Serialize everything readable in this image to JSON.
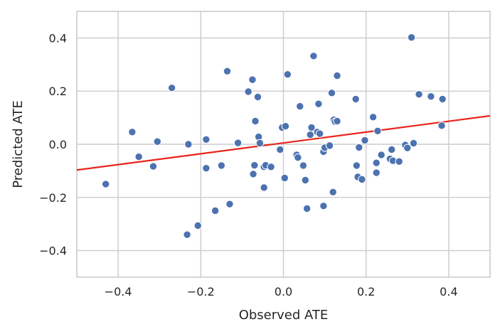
{
  "chart_data": {
    "type": "scatter",
    "title": "",
    "xlabel": "Observed ATE",
    "ylabel": "Predicted ATE",
    "xlim": [
      -0.5,
      0.5
    ],
    "ylim": [
      -0.5,
      0.5
    ],
    "xticks": [
      -0.4,
      -0.2,
      0.0,
      0.2,
      0.4
    ],
    "yticks": [
      -0.4,
      -0.2,
      0.0,
      0.2,
      0.4
    ],
    "xtick_labels": [
      "−0.4",
      "−0.2",
      "0.0",
      "0.2",
      "0.4"
    ],
    "ytick_labels": [
      "−0.4",
      "−0.2",
      "0.0",
      "0.2",
      "0.4"
    ],
    "grid": true,
    "point_color": "#4c72b0",
    "line_color": "#e8231c",
    "fit_line": {
      "x": [
        -0.5,
        0.5
      ],
      "y": [
        -0.097,
        0.107
      ]
    },
    "points": [
      {
        "x": -0.43,
        "y": -0.15
      },
      {
        "x": -0.366,
        "y": 0.046
      },
      {
        "x": -0.35,
        "y": -0.047
      },
      {
        "x": -0.315,
        "y": -0.083
      },
      {
        "x": -0.305,
        "y": 0.01
      },
      {
        "x": -0.27,
        "y": 0.212
      },
      {
        "x": -0.233,
        "y": -0.34
      },
      {
        "x": -0.23,
        "y": 0.0
      },
      {
        "x": -0.207,
        "y": -0.306
      },
      {
        "x": -0.187,
        "y": 0.018
      },
      {
        "x": -0.187,
        "y": -0.09
      },
      {
        "x": -0.165,
        "y": -0.25
      },
      {
        "x": -0.15,
        "y": -0.08
      },
      {
        "x": -0.136,
        "y": 0.275
      },
      {
        "x": -0.13,
        "y": -0.225
      },
      {
        "x": -0.11,
        "y": 0.005
      },
      {
        "x": -0.085,
        "y": 0.198
      },
      {
        "x": -0.075,
        "y": 0.243
      },
      {
        "x": -0.073,
        "y": -0.112
      },
      {
        "x": -0.07,
        "y": -0.079
      },
      {
        "x": -0.068,
        "y": 0.087
      },
      {
        "x": -0.062,
        "y": 0.178
      },
      {
        "x": -0.06,
        "y": 0.028
      },
      {
        "x": -0.057,
        "y": 0.004
      },
      {
        "x": -0.047,
        "y": -0.163
      },
      {
        "x": -0.047,
        "y": -0.085
      },
      {
        "x": -0.043,
        "y": -0.079
      },
      {
        "x": -0.03,
        "y": -0.085
      },
      {
        "x": -0.008,
        "y": -0.02
      },
      {
        "x": -0.003,
        "y": 0.063
      },
      {
        "x": 0.003,
        "y": -0.127
      },
      {
        "x": 0.005,
        "y": 0.068
      },
      {
        "x": 0.01,
        "y": 0.263
      },
      {
        "x": 0.032,
        "y": -0.04
      },
      {
        "x": 0.035,
        "y": -0.05
      },
      {
        "x": 0.04,
        "y": 0.143
      },
      {
        "x": 0.048,
        "y": -0.08
      },
      {
        "x": 0.053,
        "y": -0.135
      },
      {
        "x": 0.057,
        "y": -0.242
      },
      {
        "x": 0.065,
        "y": 0.036
      },
      {
        "x": 0.068,
        "y": 0.063
      },
      {
        "x": 0.073,
        "y": 0.332
      },
      {
        "x": 0.082,
        "y": 0.046
      },
      {
        "x": 0.085,
        "y": 0.152
      },
      {
        "x": 0.088,
        "y": 0.04
      },
      {
        "x": 0.097,
        "y": -0.232
      },
      {
        "x": 0.097,
        "y": -0.028
      },
      {
        "x": 0.1,
        "y": -0.013
      },
      {
        "x": 0.112,
        "y": -0.005
      },
      {
        "x": 0.117,
        "y": 0.193
      },
      {
        "x": 0.12,
        "y": -0.18
      },
      {
        "x": 0.122,
        "y": 0.092
      },
      {
        "x": 0.125,
        "y": 0.085
      },
      {
        "x": 0.13,
        "y": 0.258
      },
      {
        "x": 0.13,
        "y": 0.087
      },
      {
        "x": 0.175,
        "y": 0.17
      },
      {
        "x": 0.177,
        "y": -0.08
      },
      {
        "x": 0.18,
        "y": -0.123
      },
      {
        "x": 0.183,
        "y": -0.012
      },
      {
        "x": 0.19,
        "y": -0.132
      },
      {
        "x": 0.197,
        "y": 0.015
      },
      {
        "x": 0.217,
        "y": 0.102
      },
      {
        "x": 0.225,
        "y": -0.07
      },
      {
        "x": 0.225,
        "y": -0.107
      },
      {
        "x": 0.228,
        "y": 0.05
      },
      {
        "x": 0.237,
        "y": -0.04
      },
      {
        "x": 0.258,
        "y": -0.055
      },
      {
        "x": 0.262,
        "y": -0.02
      },
      {
        "x": 0.265,
        "y": -0.062
      },
      {
        "x": 0.28,
        "y": -0.065
      },
      {
        "x": 0.295,
        "y": -0.003
      },
      {
        "x": 0.3,
        "y": -0.014
      },
      {
        "x": 0.31,
        "y": 0.402
      },
      {
        "x": 0.315,
        "y": 0.004
      },
      {
        "x": 0.328,
        "y": 0.188
      },
      {
        "x": 0.357,
        "y": 0.18
      },
      {
        "x": 0.383,
        "y": 0.07
      },
      {
        "x": 0.385,
        "y": 0.17
      }
    ]
  }
}
